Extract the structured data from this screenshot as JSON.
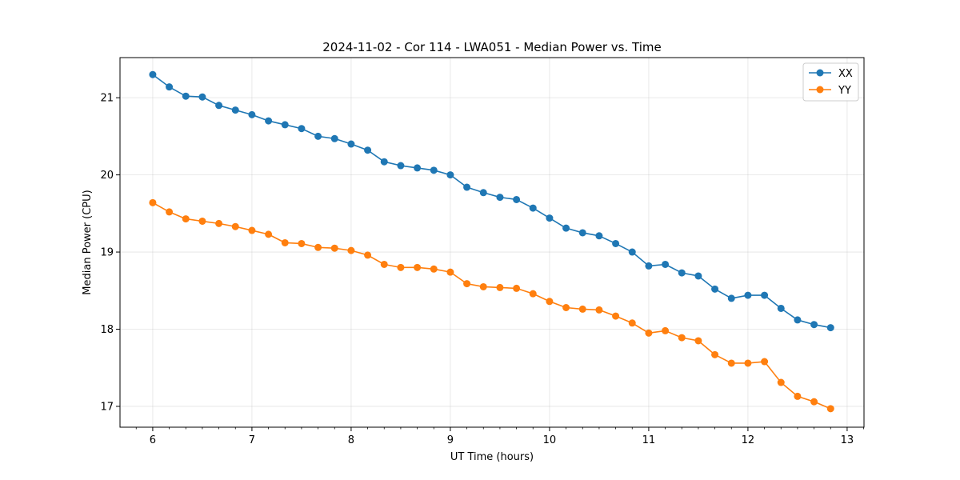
{
  "chart_data": {
    "type": "line",
    "title": "2024-11-02 - Cor 114 - LWA051 - Median Power vs. Time",
    "xlabel": "UT Time (hours)",
    "ylabel": "Median Power (CPU)",
    "xlim": [
      5.67,
      13.17
    ],
    "ylim": [
      16.73,
      21.52
    ],
    "xticks": [
      6,
      7,
      8,
      9,
      10,
      11,
      12,
      13
    ],
    "yticks": [
      17,
      18,
      19,
      20,
      21
    ],
    "grid": true,
    "legend_position": "top-right",
    "x": [
      6.0,
      6.1667,
      6.3333,
      6.5,
      6.6667,
      6.8333,
      7.0,
      7.1667,
      7.3333,
      7.5,
      7.6667,
      7.8333,
      8.0,
      8.1667,
      8.3333,
      8.5,
      8.6667,
      8.8333,
      9.0,
      9.1667,
      9.3333,
      9.5,
      9.6667,
      9.8333,
      10.0,
      10.1667,
      10.3333,
      10.5,
      10.6667,
      10.8333,
      11.0,
      11.1667,
      11.3333,
      11.5,
      11.6667,
      11.8333,
      12.0,
      12.1667,
      12.3333,
      12.5,
      12.6667,
      12.8333
    ],
    "series": [
      {
        "name": "XX",
        "color": "#1f77b4",
        "values": [
          21.3,
          21.14,
          21.02,
          21.01,
          20.9,
          20.84,
          20.78,
          20.7,
          20.65,
          20.6,
          20.5,
          20.47,
          20.4,
          20.32,
          20.17,
          20.12,
          20.09,
          20.06,
          20.0,
          19.84,
          19.77,
          19.71,
          19.68,
          19.57,
          19.44,
          19.31,
          19.25,
          19.21,
          19.11,
          19.0,
          18.82,
          18.84,
          18.73,
          18.69,
          18.52,
          18.4,
          18.44,
          18.44,
          18.27,
          18.12,
          18.06,
          18.02
        ]
      },
      {
        "name": "YY",
        "color": "#ff7f0e",
        "values": [
          19.64,
          19.52,
          19.43,
          19.4,
          19.37,
          19.33,
          19.28,
          19.23,
          19.12,
          19.11,
          19.06,
          19.05,
          19.02,
          18.96,
          18.84,
          18.8,
          18.8,
          18.78,
          18.74,
          18.59,
          18.55,
          18.54,
          18.53,
          18.46,
          18.36,
          18.28,
          18.26,
          18.25,
          18.17,
          18.08,
          17.95,
          17.98,
          17.89,
          17.85,
          17.67,
          17.56,
          17.56,
          17.58,
          17.31,
          17.13,
          17.06,
          16.97
        ]
      }
    ]
  }
}
